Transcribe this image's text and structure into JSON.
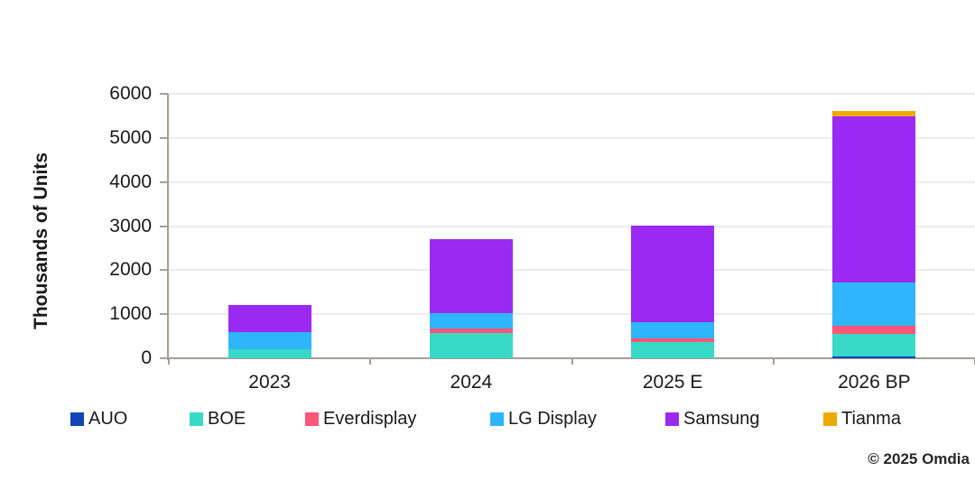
{
  "chart_data": {
    "type": "bar",
    "stacked": true,
    "title": "",
    "ylabel": "Thousands of Units",
    "xlabel": "",
    "categories": [
      "2023",
      "2024",
      "2025 E",
      "2026 BP"
    ],
    "series": [
      {
        "name": "AUO",
        "color": "#1245b5",
        "values": [
          0,
          0,
          0,
          50
        ]
      },
      {
        "name": "BOE",
        "color": "#38d9c6",
        "values": [
          210,
          580,
          360,
          495
        ]
      },
      {
        "name": "Everdisplay",
        "color": "#fb5578",
        "values": [
          0,
          90,
          95,
          195
        ]
      },
      {
        "name": "LG Display",
        "color": "#2eb5fc",
        "values": [
          390,
          350,
          370,
          980
        ]
      },
      {
        "name": "Samsung",
        "color": "#9a2af3",
        "values": [
          610,
          1680,
          2190,
          3770
        ]
      },
      {
        "name": "Tianma",
        "color": "#eda900",
        "values": [
          0,
          0,
          0,
          120
        ]
      }
    ],
    "ylim": [
      0,
      6000
    ],
    "yticks": [
      0,
      1000,
      2000,
      3000,
      4000,
      5000,
      6000
    ],
    "grid": true,
    "legend_position": "bottom",
    "axis_color": "#a79d94",
    "gridline_color": "#ececec"
  },
  "footer": {
    "copyright": "© 2025 Omdia"
  }
}
